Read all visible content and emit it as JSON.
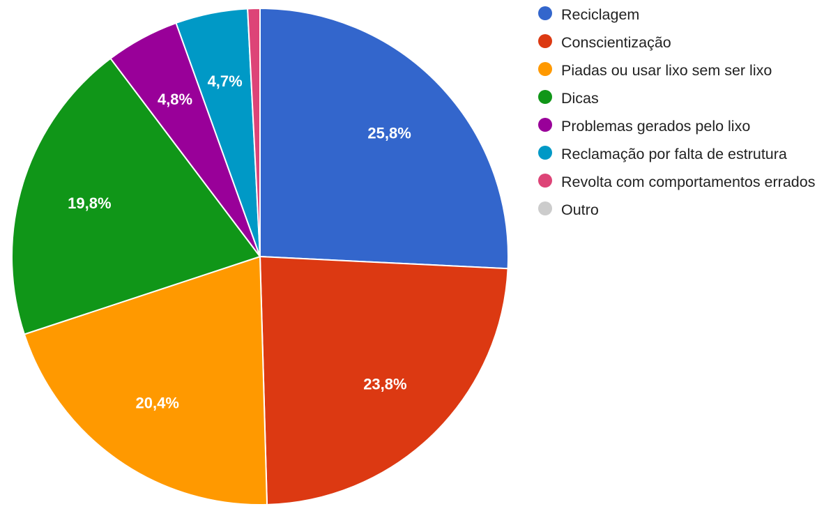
{
  "chart_data": {
    "type": "pie",
    "title": "",
    "slices": [
      {
        "name": "Reciclagem",
        "value": 25.8,
        "label": "25,8%",
        "color": "#3366cc"
      },
      {
        "name": "Conscientização",
        "value": 23.8,
        "label": "23,8%",
        "color": "#dc3912"
      },
      {
        "name": "Piadas ou usar lixo sem ser lixo",
        "value": 20.4,
        "label": "20,4%",
        "color": "#ff9900"
      },
      {
        "name": "Dicas",
        "value": 19.8,
        "label": "19,8%",
        "color": "#109618"
      },
      {
        "name": "Problemas gerados pelo lixo",
        "value": 4.8,
        "label": "4,8%",
        "color": "#990099"
      },
      {
        "name": "Reclamação por falta de estrutura",
        "value": 4.7,
        "label": "4,7%",
        "color": "#0099c6"
      },
      {
        "name": "Revolta com comportamentos errados",
        "value": 0.8,
        "label": "",
        "color": "#dd4477"
      },
      {
        "name": "Outro",
        "value": 0,
        "label": "",
        "color": "#cccccc"
      }
    ],
    "legend_position": "right"
  }
}
